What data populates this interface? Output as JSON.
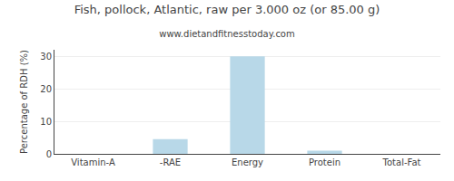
{
  "chart_data": {
    "type": "bar",
    "title": "Fish, pollock, Atlantic, raw per 3.000 oz (or 85.00 g)",
    "subtitle": "www.dietandfitnesstoday.com",
    "categories": [
      "Vitamin-A",
      "-RAE",
      "Energy",
      "Protein",
      "Total-Fat"
    ],
    "values": [
      0,
      4.5,
      30,
      1,
      0
    ],
    "color": "#b8d8e8",
    "ylabel": "Percentage of RDH (%)",
    "ylim": [
      0,
      32
    ],
    "yticks": [
      0,
      10,
      20,
      30
    ],
    "grid": true
  }
}
